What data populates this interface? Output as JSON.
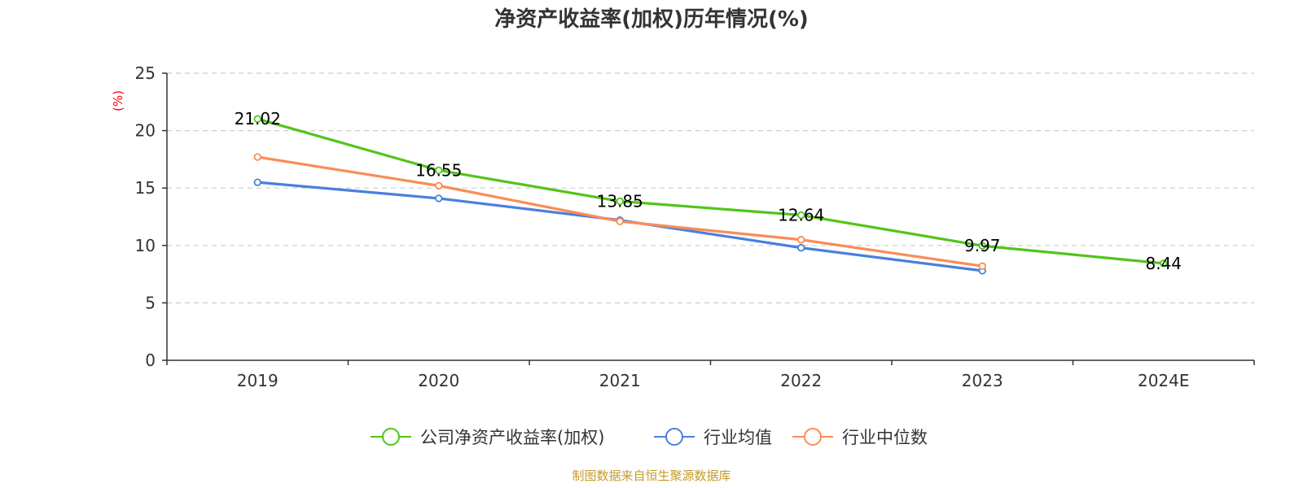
{
  "chart_data": {
    "type": "line",
    "title": "净资产收益率(加权)历年情况(%)",
    "ylabel": "(%)",
    "xlabel": "",
    "categories": [
      "2019",
      "2020",
      "2021",
      "2022",
      "2023",
      "2024E"
    ],
    "ylim": [
      0,
      25
    ],
    "yticks": [
      0,
      5,
      10,
      15,
      20,
      25
    ],
    "grid": true,
    "legend_position": "bottom",
    "series": [
      {
        "name": "公司净资产收益率(加权)",
        "color": "#52c41a",
        "values": [
          21.02,
          16.55,
          13.85,
          12.64,
          9.97,
          8.44
        ],
        "labels": [
          "21.02",
          "16.55",
          "13.85",
          "12.64",
          "9.97",
          "8.44"
        ]
      },
      {
        "name": "行业均值",
        "color": "#4a7fdd",
        "values": [
          15.5,
          14.1,
          12.2,
          9.8,
          7.8,
          null
        ]
      },
      {
        "name": "行业中位数",
        "color": "#fa8c57",
        "values": [
          17.7,
          15.2,
          12.1,
          10.5,
          8.2,
          null
        ]
      }
    ],
    "source": "制图数据来自恒生聚源数据库",
    "source_color": "#c49a2c",
    "unit_color": "#ff0000"
  }
}
